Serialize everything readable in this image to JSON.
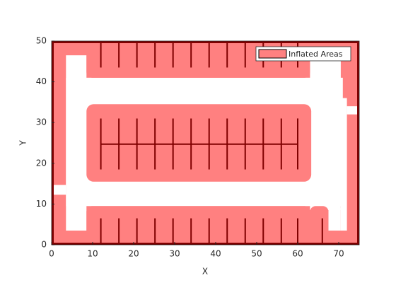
{
  "chart_data": {
    "type": "occupancy-map",
    "xlabel": "X",
    "ylabel": "Y",
    "xlim": [
      0,
      75
    ],
    "ylim": [
      0,
      50
    ],
    "xticks": [
      0,
      10,
      20,
      30,
      40,
      50,
      60,
      70
    ],
    "yticks": [
      0,
      10,
      20,
      30,
      40,
      50
    ],
    "legend": "Inflated Areas",
    "legend_position": "northeast",
    "color": "#ff8080",
    "edge_color": "#800000"
  }
}
